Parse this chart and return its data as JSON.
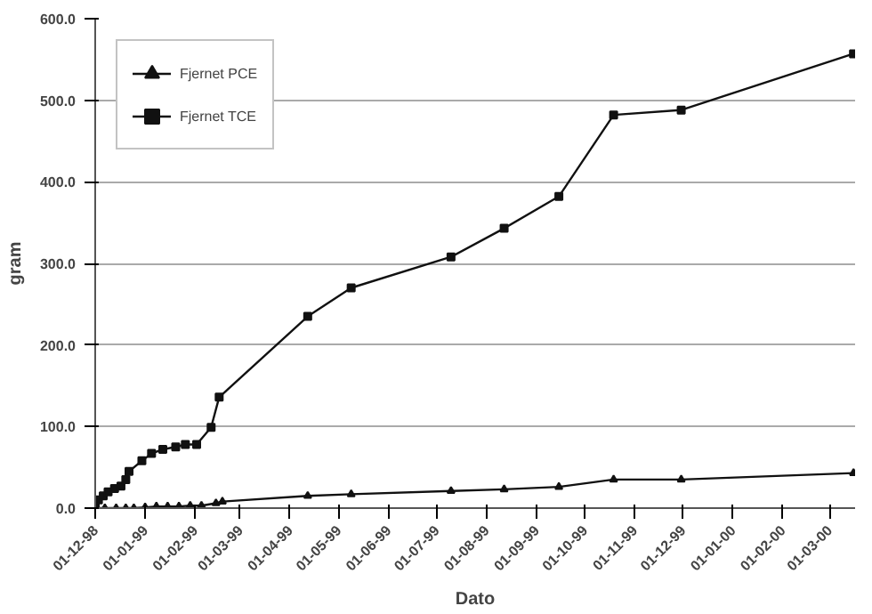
{
  "chart_data": {
    "type": "line",
    "xlabel": "Dato",
    "ylabel": "gram",
    "xlim": [
      "1998-12-01",
      "2000-03-17"
    ],
    "xticks": [
      {
        "value": "1998-12-01",
        "label": "01-12-98"
      },
      {
        "value": "1999-01-01",
        "label": "01-01-99"
      },
      {
        "value": "1999-02-01",
        "label": "01-02-99"
      },
      {
        "value": "1999-03-01",
        "label": "01-03-99"
      },
      {
        "value": "1999-04-01",
        "label": "01-04-99"
      },
      {
        "value": "1999-05-01",
        "label": "01-05-99"
      },
      {
        "value": "1999-06-01",
        "label": "01-06-99"
      },
      {
        "value": "1999-07-01",
        "label": "01-07-99"
      },
      {
        "value": "1999-08-01",
        "label": "01-08-99"
      },
      {
        "value": "1999-09-01",
        "label": "01-09-99"
      },
      {
        "value": "1999-10-01",
        "label": "01-10-99"
      },
      {
        "value": "1999-11-01",
        "label": "01-11-99"
      },
      {
        "value": "1999-12-01",
        "label": "01-12-99"
      },
      {
        "value": "2000-01-01",
        "label": "01-01-00"
      },
      {
        "value": "2000-02-01",
        "label": "01-02-00"
      },
      {
        "value": "2000-03-01",
        "label": "01-03-00"
      }
    ],
    "ylim": [
      0,
      600
    ],
    "yticks": [
      {
        "value": 0,
        "label": "0.0"
      },
      {
        "value": 100,
        "label": "100.0"
      },
      {
        "value": 200,
        "label": "200.0"
      },
      {
        "value": 300,
        "label": "300.0"
      },
      {
        "value": 400,
        "label": "400.0"
      },
      {
        "value": 500,
        "label": "500.0"
      },
      {
        "value": 600,
        "label": "600.0"
      }
    ],
    "grid": "y",
    "legend": "top left",
    "series": [
      {
        "name": "Fjernet PCE",
        "color": "#111111",
        "marker": "triangle",
        "x": [
          "1998-12-01",
          "1998-12-07",
          "1998-12-14",
          "1998-12-20",
          "1998-12-25",
          "1999-01-01",
          "1999-01-08",
          "1999-01-15",
          "1999-01-22",
          "1999-01-29",
          "1999-02-05",
          "1999-02-14",
          "1999-02-18",
          "1999-04-12",
          "1999-05-09",
          "1999-07-10",
          "1999-08-12",
          "1999-09-15",
          "1999-10-19",
          "1999-11-30",
          "2000-03-16"
        ],
        "values": [
          0,
          0,
          0,
          0,
          0,
          1,
          2,
          2,
          2,
          3,
          3,
          6,
          8,
          15,
          17,
          21,
          23,
          26,
          35,
          35,
          43
        ]
      },
      {
        "name": "Fjernet TCE",
        "color": "#111111",
        "marker": "square",
        "x": [
          "1998-12-01",
          "1998-12-03",
          "1998-12-06",
          "1998-12-09",
          "1998-12-13",
          "1998-12-17",
          "1998-12-20",
          "1998-12-22",
          "1998-12-30",
          "1999-01-05",
          "1999-01-12",
          "1999-01-20",
          "1999-01-26",
          "1999-02-02",
          "1999-02-11",
          "1999-02-16",
          "1999-04-12",
          "1999-05-09",
          "1999-07-10",
          "1999-08-12",
          "1999-09-15",
          "1999-10-19",
          "1999-11-30",
          "2000-03-16"
        ],
        "values": [
          2,
          10,
          15,
          20,
          24,
          27,
          35,
          45,
          58,
          67,
          72,
          75,
          78,
          78,
          99,
          136,
          235,
          270,
          308,
          343,
          382,
          482,
          488,
          557
        ]
      }
    ]
  }
}
